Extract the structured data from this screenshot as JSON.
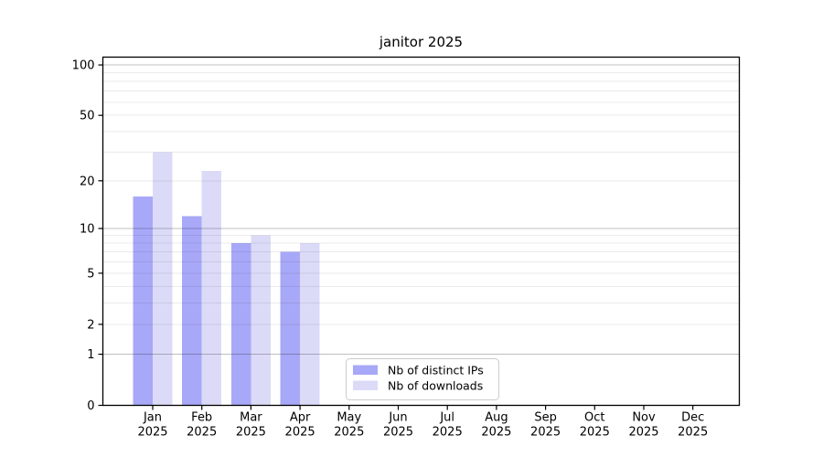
{
  "chart_data": {
    "type": "bar",
    "title": "janitor 2025",
    "xlabel": "",
    "ylabel": "",
    "yscale": "log1p",
    "ylim": [
      0,
      112
    ],
    "grid": true,
    "legend_position": "lower-center",
    "categories": [
      "Jan",
      "Feb",
      "Mar",
      "Apr",
      "May",
      "Jun",
      "Jul",
      "Aug",
      "Sep",
      "Oct",
      "Nov",
      "Dec"
    ],
    "category_year": "2025",
    "ytick_labels": [
      "0",
      "1",
      "2",
      "5",
      "10",
      "20",
      "50",
      "100"
    ],
    "ytick_values": [
      0,
      1,
      2,
      5,
      10,
      20,
      50,
      100
    ],
    "major_gridline_values": [
      1,
      10,
      100
    ],
    "minor_gridline_values": [
      2,
      3,
      4,
      5,
      6,
      7,
      8,
      9,
      20,
      30,
      40,
      50,
      60,
      70,
      80,
      90
    ],
    "series": [
      {
        "name": "Nb of distinct IPs",
        "color": "#a8a8f8",
        "values": [
          16,
          12,
          8,
          7,
          0,
          0,
          0,
          0,
          0,
          0,
          0,
          0
        ]
      },
      {
        "name": "Nb of downloads",
        "color": "#dbdbf8",
        "values": [
          30,
          23,
          9,
          8,
          0,
          0,
          0,
          0,
          0,
          0,
          0,
          0
        ]
      }
    ]
  },
  "colors": {
    "axis": "#000000",
    "major_grid": "rgba(0,0,0,0.25)",
    "minor_grid": "rgba(0,0,0,0.08)",
    "legend_border": "#cccccc",
    "background": "#ffffff"
  }
}
